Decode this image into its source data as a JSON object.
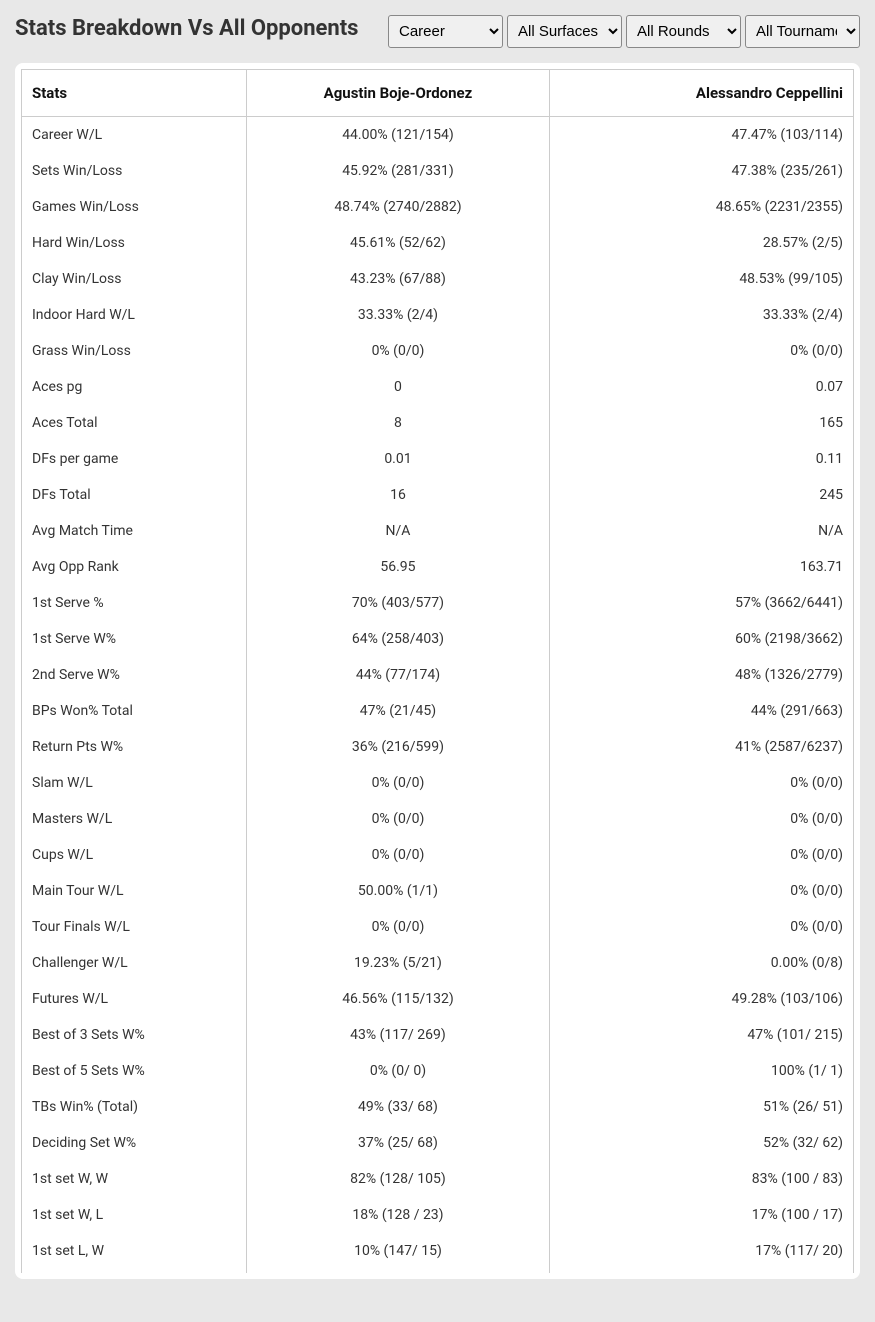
{
  "header": {
    "title": "Stats Breakdown Vs All Opponents"
  },
  "filters": {
    "career": {
      "selected": "Career",
      "options": [
        "Career"
      ]
    },
    "surface": {
      "selected": "All Surfaces",
      "options": [
        "All Surfaces"
      ]
    },
    "rounds": {
      "selected": "All Rounds",
      "options": [
        "All Rounds"
      ]
    },
    "tournament": {
      "selected": "All Tournaments",
      "options": [
        "All Tournaments"
      ]
    }
  },
  "table": {
    "headers": {
      "stats": "Stats",
      "player1": "Agustin Boje-Ordonez",
      "player2": "Alessandro Ceppellini"
    },
    "rows": [
      {
        "stat": "Career W/L",
        "p1": "44.00% (121/154)",
        "p2": "47.47% (103/114)"
      },
      {
        "stat": "Sets Win/Loss",
        "p1": "45.92% (281/331)",
        "p2": "47.38% (235/261)"
      },
      {
        "stat": "Games Win/Loss",
        "p1": "48.74% (2740/2882)",
        "p2": "48.65% (2231/2355)"
      },
      {
        "stat": "Hard Win/Loss",
        "p1": "45.61% (52/62)",
        "p2": "28.57% (2/5)"
      },
      {
        "stat": "Clay Win/Loss",
        "p1": "43.23% (67/88)",
        "p2": "48.53% (99/105)"
      },
      {
        "stat": "Indoor Hard W/L",
        "p1": "33.33% (2/4)",
        "p2": "33.33% (2/4)"
      },
      {
        "stat": "Grass Win/Loss",
        "p1": "0% (0/0)",
        "p2": "0% (0/0)"
      },
      {
        "stat": "Aces pg",
        "p1": "0",
        "p2": "0.07"
      },
      {
        "stat": "Aces Total",
        "p1": "8",
        "p2": "165"
      },
      {
        "stat": "DFs per game",
        "p1": "0.01",
        "p2": "0.11"
      },
      {
        "stat": "DFs Total",
        "p1": "16",
        "p2": "245"
      },
      {
        "stat": "Avg Match Time",
        "p1": "N/A",
        "p2": "N/A"
      },
      {
        "stat": "Avg Opp Rank",
        "p1": "56.95",
        "p2": "163.71"
      },
      {
        "stat": "1st Serve %",
        "p1": "70% (403/577)",
        "p2": "57% (3662/6441)"
      },
      {
        "stat": "1st Serve W%",
        "p1": "64% (258/403)",
        "p2": "60% (2198/3662)"
      },
      {
        "stat": "2nd Serve W%",
        "p1": "44% (77/174)",
        "p2": "48% (1326/2779)"
      },
      {
        "stat": "BPs Won% Total",
        "p1": "47% (21/45)",
        "p2": "44% (291/663)"
      },
      {
        "stat": "Return Pts W%",
        "p1": "36% (216/599)",
        "p2": "41% (2587/6237)"
      },
      {
        "stat": "Slam W/L",
        "p1": "0% (0/0)",
        "p2": "0% (0/0)"
      },
      {
        "stat": "Masters W/L",
        "p1": "0% (0/0)",
        "p2": "0% (0/0)"
      },
      {
        "stat": "Cups W/L",
        "p1": "0% (0/0)",
        "p2": "0% (0/0)"
      },
      {
        "stat": "Main Tour W/L",
        "p1": "50.00% (1/1)",
        "p2": "0% (0/0)"
      },
      {
        "stat": "Tour Finals W/L",
        "p1": "0% (0/0)",
        "p2": "0% (0/0)"
      },
      {
        "stat": "Challenger W/L",
        "p1": "19.23% (5/21)",
        "p2": "0.00% (0/8)"
      },
      {
        "stat": "Futures W/L",
        "p1": "46.56% (115/132)",
        "p2": "49.28% (103/106)"
      },
      {
        "stat": "Best of 3 Sets W%",
        "p1": "43% (117/ 269)",
        "p2": "47% (101/ 215)"
      },
      {
        "stat": "Best of 5 Sets W%",
        "p1": "0% (0/ 0)",
        "p2": "100% (1/ 1)"
      },
      {
        "stat": "TBs Win% (Total)",
        "p1": "49% (33/ 68)",
        "p2": "51% (26/ 51)"
      },
      {
        "stat": "Deciding Set W%",
        "p1": "37% (25/ 68)",
        "p2": "52% (32/ 62)"
      },
      {
        "stat": "1st set W, W",
        "p1": "82% (128/ 105)",
        "p2": "83% (100 / 83)"
      },
      {
        "stat": "1st set W, L",
        "p1": "18% (128 / 23)",
        "p2": "17% (100 / 17)"
      },
      {
        "stat": "1st set L, W",
        "p1": "10% (147/ 15)",
        "p2": "17% (117/ 20)"
      }
    ]
  },
  "colors": {
    "background": "#e8e8e8",
    "card_background": "#ffffff",
    "border": "#cccccc",
    "text_primary": "#333333",
    "text_header": "#111111"
  }
}
